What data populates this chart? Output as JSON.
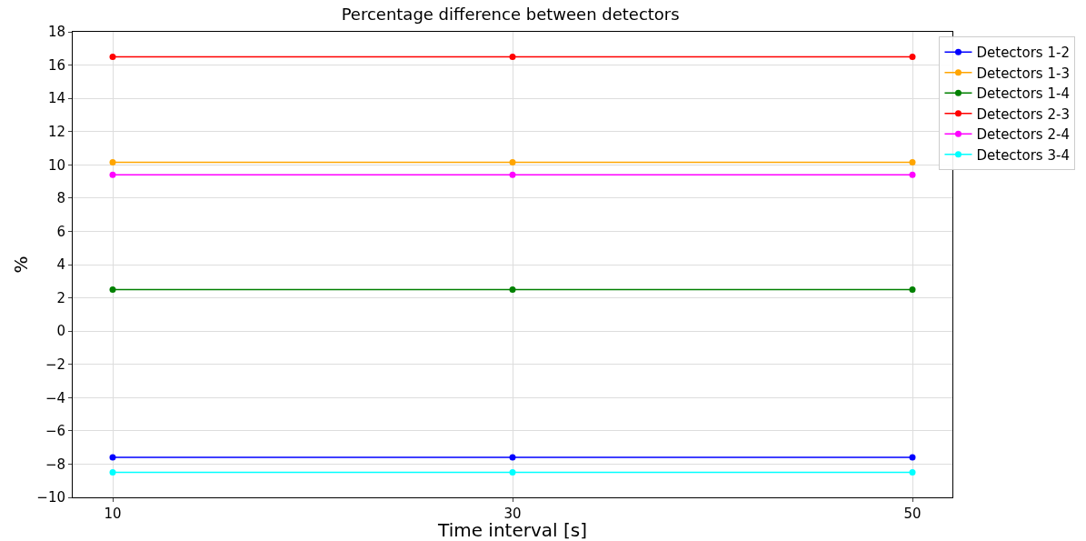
{
  "chart_data": {
    "type": "line",
    "title": "Percentage difference between detectors",
    "xlabel": "Time interval [s]",
    "ylabel": "%",
    "x": [
      10,
      30,
      50
    ],
    "xlim": [
      8,
      52
    ],
    "xticks": [
      10,
      30,
      50
    ],
    "ylim": [
      -10,
      18
    ],
    "yticks": [
      -10,
      -8,
      -6,
      -4,
      -2,
      0,
      2,
      4,
      6,
      8,
      10,
      12,
      14,
      16,
      18
    ],
    "grid": true,
    "legend": "top right",
    "marker": "circle",
    "series": [
      {
        "name": "Detectors 1-2",
        "color": "#0000ff",
        "values": [
          -7.6,
          -7.6,
          -7.6
        ]
      },
      {
        "name": "Detectors 1-3",
        "color": "#ffa500",
        "values": [
          10.15,
          10.15,
          10.15
        ]
      },
      {
        "name": "Detectors 1-4",
        "color": "#008000",
        "values": [
          2.5,
          2.5,
          2.5
        ]
      },
      {
        "name": "Detectors 2-3",
        "color": "#ff0000",
        "values": [
          16.5,
          16.5,
          16.5
        ]
      },
      {
        "name": "Detectors 2-4",
        "color": "#ff00ff",
        "values": [
          9.4,
          9.4,
          9.4
        ]
      },
      {
        "name": "Detectors 3-4",
        "color": "#00ffff",
        "values": [
          -8.5,
          -8.5,
          -8.5
        ]
      }
    ]
  }
}
